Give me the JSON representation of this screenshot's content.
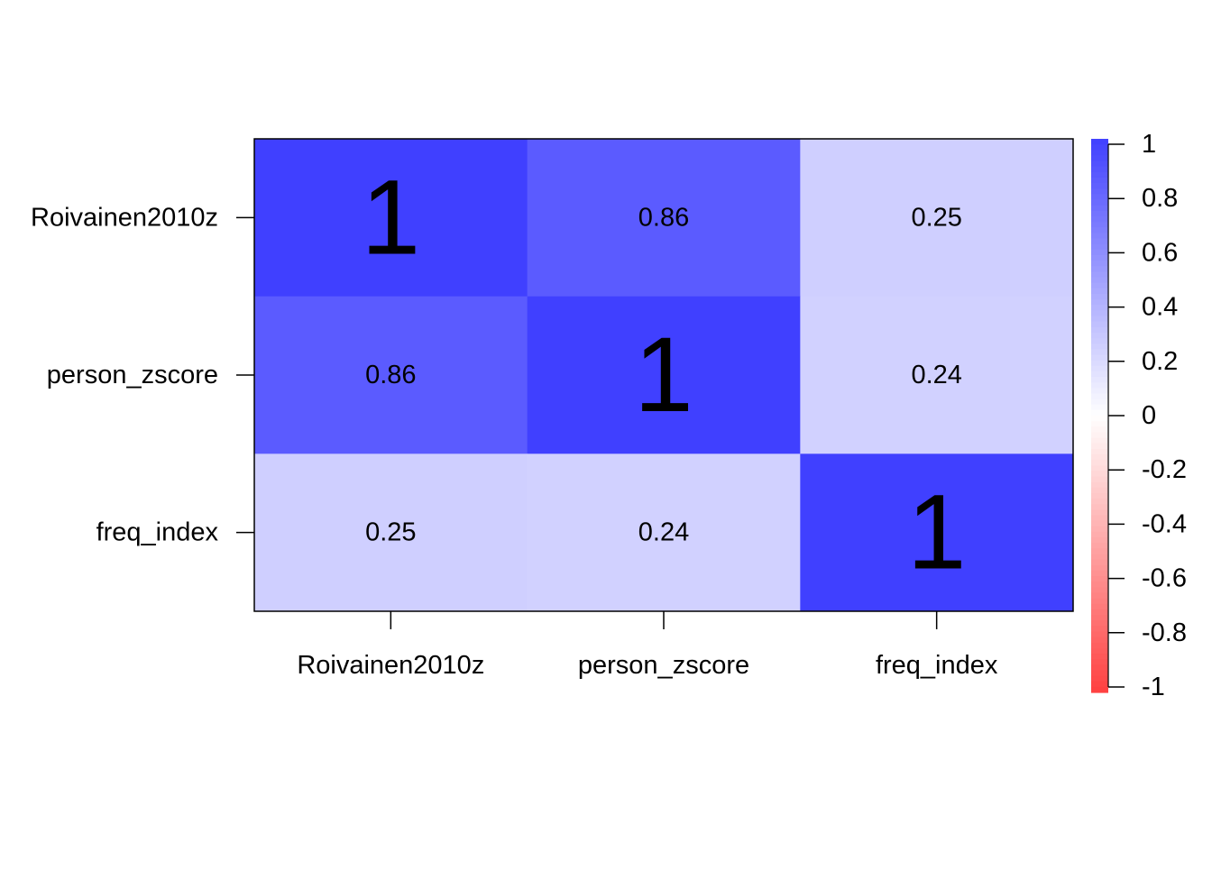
{
  "chart_data": {
    "type": "heatmap",
    "title": "",
    "xlabel": "",
    "ylabel": "",
    "rows": [
      "Roivainen2010z",
      "person_zscore",
      "freq_index"
    ],
    "columns": [
      "Roivainen2010z",
      "person_zscore",
      "freq_index"
    ],
    "values": [
      [
        1,
        0.86,
        0.25
      ],
      [
        0.86,
        1,
        0.24
      ],
      [
        0.25,
        0.24,
        1
      ]
    ],
    "cell_labels": [
      [
        "1",
        "0.86",
        "0.25"
      ],
      [
        "0.86",
        "1",
        "0.24"
      ],
      [
        "0.25",
        "0.24",
        "1"
      ]
    ],
    "color_scale": {
      "min": -1,
      "max": 1,
      "colors": {
        "negative": "#ff4040",
        "zero": "#ffffff",
        "positive": "#4040ff"
      },
      "ticks": [
        1,
        0.8,
        0.6,
        0.4,
        0.2,
        0,
        -0.2,
        -0.4,
        -0.6,
        -0.8,
        -1
      ],
      "tick_labels": [
        "1",
        "0.8",
        "0.6",
        "0.4",
        "0.2",
        "0",
        "-0.2",
        "-0.4",
        "-0.6",
        "-0.8",
        "-1"
      ]
    },
    "grid": false,
    "legend_placement": "right"
  }
}
